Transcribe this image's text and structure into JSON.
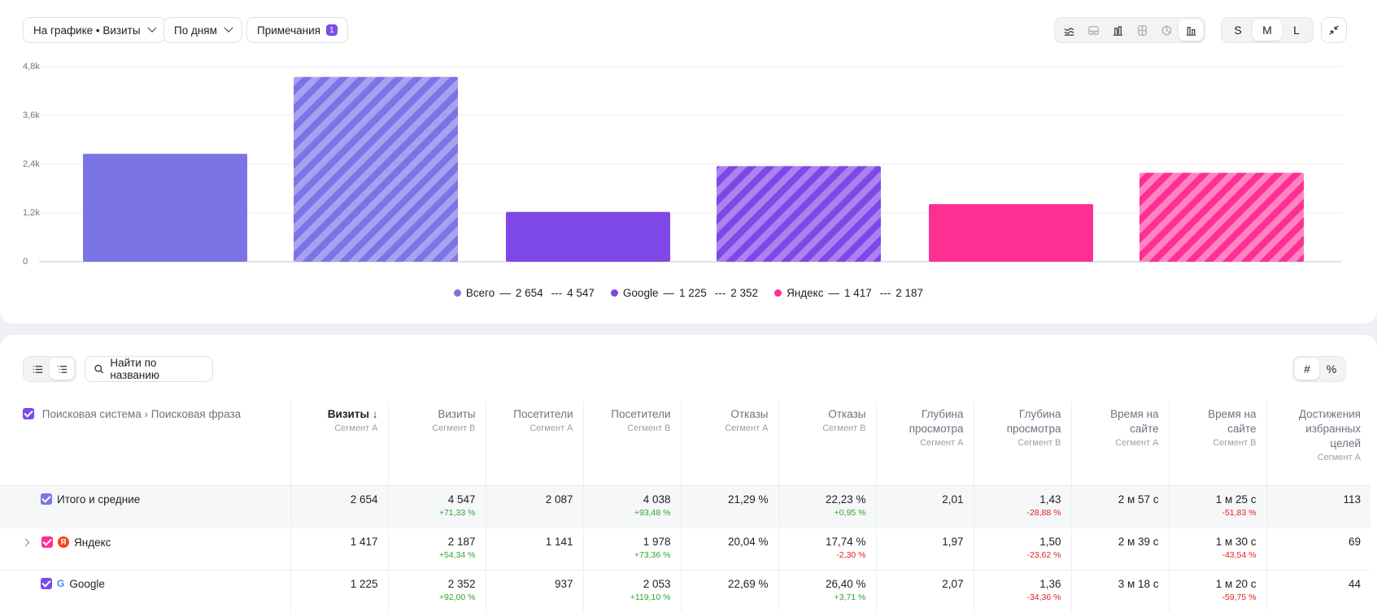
{
  "toolbar": {
    "chart_metric": "На графике • Визиты",
    "grouping": "По дням",
    "notes_label": "Примечания",
    "notes_count": "1",
    "chart_types": [
      "line-chart-icon",
      "area-chart-icon",
      "bar-chart-icon",
      "stacked-bar-icon",
      "pie-chart-icon",
      "grouped-bar-icon"
    ],
    "chart_type_active": 5,
    "sizes": [
      "S",
      "M",
      "L"
    ],
    "size_active": "M"
  },
  "chart_data": {
    "type": "bar",
    "categories": [
      "Всего",
      "Google",
      "Яндекс"
    ],
    "series": [
      {
        "name": "Сегмент A",
        "values": [
          2654,
          1225,
          1417
        ]
      },
      {
        "name": "Сегмент B",
        "values": [
          4547,
          2352,
          2187
        ]
      }
    ],
    "colors": [
      "#7b74e4",
      "#7e48e6",
      "#fd2f93"
    ],
    "yticks": [
      "0",
      "1,2k",
      "2,4k",
      "3,6k",
      "4,8k"
    ],
    "ylim": [
      0,
      4800
    ],
    "grid": true,
    "legend_position": "bottom"
  },
  "legend": [
    {
      "name": "Всего",
      "a": "2 654",
      "b": "4 547",
      "color": "#7b74e4"
    },
    {
      "name": "Google",
      "a": "1 225",
      "b": "2 352",
      "color": "#7e48e6"
    },
    {
      "name": "Яндекс",
      "a": "1 417",
      "b": "2 187",
      "color": "#fd2f93"
    }
  ],
  "table_tools": {
    "search_placeholder": "Найти по названию",
    "value_modes": [
      "#",
      "%"
    ]
  },
  "table": {
    "dimension_header": "Поисковая система › Поисковая фраза",
    "columns": [
      {
        "label": "Визиты",
        "segment": "Сегмент A",
        "sorted": true
      },
      {
        "label": "Визиты",
        "segment": "Сегмент B"
      },
      {
        "label": "Посетители",
        "segment": "Сегмент A"
      },
      {
        "label": "Посетители",
        "segment": "Сегмент B"
      },
      {
        "label": "Отказы",
        "segment": "Сегмент A"
      },
      {
        "label": "Отказы",
        "segment": "Сегмент B"
      },
      {
        "label": "Глубина просмотра",
        "segment": "Сегмент A"
      },
      {
        "label": "Глубина просмотра",
        "segment": "Сегмент B"
      },
      {
        "label": "Время на сайте",
        "segment": "Сегмент A"
      },
      {
        "label": "Время на сайте",
        "segment": "Сегмент B"
      },
      {
        "label": "Достижения избранных целей",
        "segment": "Сегмент A"
      }
    ],
    "rows": [
      {
        "name": "Итого и средние",
        "color": "#7b74e4",
        "icon": "",
        "total": true,
        "cells": [
          [
            "2 654",
            ""
          ],
          [
            "4 547",
            "+71,33 %"
          ],
          [
            "2 087",
            ""
          ],
          [
            "4 038",
            "+93,48 %"
          ],
          [
            "21,29 %",
            ""
          ],
          [
            "22,23 %",
            "+0,95 %"
          ],
          [
            "2,01",
            ""
          ],
          [
            "1,43",
            "-28,88 %"
          ],
          [
            "2 м 57 с",
            ""
          ],
          [
            "1 м 25 с",
            "-51,83 %"
          ],
          [
            "113",
            ""
          ]
        ]
      },
      {
        "name": "Яндекс",
        "color": "#fd2f93",
        "icon": "yandex-icon",
        "expandable": true,
        "cells": [
          [
            "1 417",
            ""
          ],
          [
            "2 187",
            "+54,34 %"
          ],
          [
            "1 141",
            ""
          ],
          [
            "1 978",
            "+73,36 %"
          ],
          [
            "20,04 %",
            ""
          ],
          [
            "17,74 %",
            "-2,30 %"
          ],
          [
            "1,97",
            ""
          ],
          [
            "1,50",
            "-23,62 %"
          ],
          [
            "2 м 39 с",
            ""
          ],
          [
            "1 м 30 с",
            "-43,54 %"
          ],
          [
            "69",
            ""
          ]
        ]
      },
      {
        "name": "Google",
        "color": "#7e48e6",
        "icon": "google-icon",
        "cells": [
          [
            "1 225",
            ""
          ],
          [
            "2 352",
            "+92,00 %"
          ],
          [
            "937",
            ""
          ],
          [
            "2 053",
            "+119,10 %"
          ],
          [
            "22,69 %",
            ""
          ],
          [
            "26,40 %",
            "+3,71 %"
          ],
          [
            "2,07",
            ""
          ],
          [
            "1,36",
            "-34,36 %"
          ],
          [
            "3 м 18 с",
            ""
          ],
          [
            "1 м 20 с",
            "-59,75 %"
          ],
          [
            "44",
            ""
          ]
        ]
      }
    ]
  }
}
